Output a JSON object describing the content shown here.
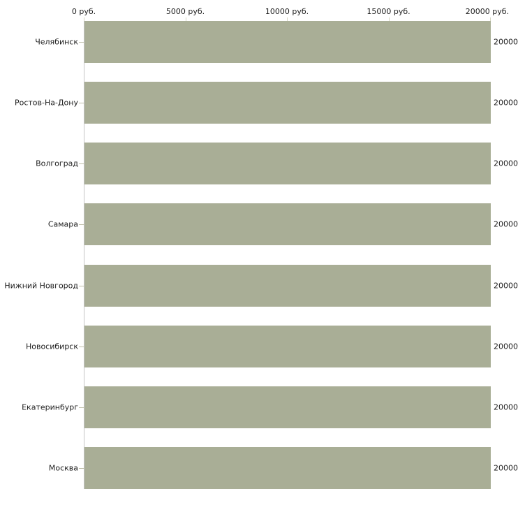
{
  "chart_data": {
    "type": "bar",
    "orientation": "horizontal",
    "title": "",
    "legend": false,
    "grid": false,
    "categories": [
      "Челябинск",
      "Ростов-На-Дону",
      "Волгоград",
      "Самара",
      "Нижний Новгород",
      "Новосибирск",
      "Екатеринбург",
      "Москва"
    ],
    "values": [
      20000,
      20000,
      20000,
      20000,
      20000,
      20000,
      20000,
      20000
    ],
    "value_labels": [
      "20000",
      "20000",
      "20000",
      "20000",
      "20000",
      "20000",
      "20000",
      "20000"
    ],
    "x_axis": {
      "position": "top",
      "min": 0,
      "max": 20000,
      "tick_values": [
        0,
        5000,
        10000,
        15000,
        20000
      ],
      "tick_labels": [
        "0 руб.",
        "5000 руб.",
        "10000 руб.",
        "15000 руб.",
        "20000 руб."
      ]
    },
    "colors": {
      "bar_fill": "#a9ae96",
      "axis_line": "#c4c4c4",
      "x_tick": "#d6d6c2",
      "category_tick": "#bfbfa9",
      "text": "#1c1c1c",
      "background": "#ffffff"
    }
  }
}
